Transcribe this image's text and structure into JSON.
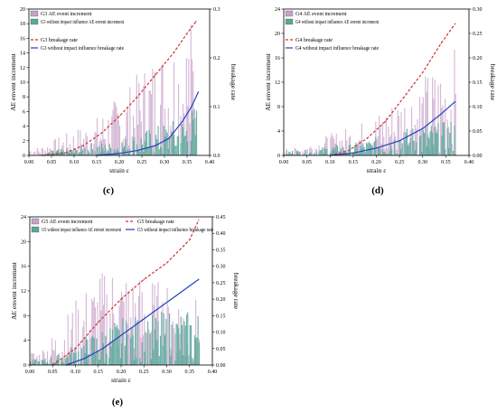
{
  "chart_data": [
    {
      "type": "bar+line",
      "panel_label": "(c)",
      "xlabel": "strain ε",
      "ylabel": "AE envent increment",
      "y2label": "breakage rate",
      "xlim": [
        0.0,
        0.4
      ],
      "xticks": [
        "0.00",
        "0.05",
        "0.10",
        "0.15",
        "0.20",
        "0.25",
        "0.30",
        "0.35",
        "0.40"
      ],
      "ylim": [
        0,
        20
      ],
      "yticks": [
        "0",
        "2",
        "4",
        "6",
        "8",
        "10",
        "12",
        "14",
        "16",
        "18",
        "20"
      ],
      "y2lim": [
        0.0,
        0.3
      ],
      "y2ticks": [
        "0.0",
        "0.1",
        "0.2",
        "0.3"
      ],
      "grid": false,
      "legend_placement": "top-left",
      "legend_entries": [
        "G3 AE event increment",
        "G3 without impact influence AE envent increment",
        "G3 breakage rate",
        "G3 without impact influence breakage rate"
      ],
      "series": [
        {
          "name": "G3 AE event increment",
          "kind": "bar",
          "color": "#c8a0c8",
          "x": [
            0.02,
            0.06,
            0.1,
            0.14,
            0.18,
            0.22,
            0.26,
            0.3,
            0.34,
            0.37
          ],
          "values": [
            1,
            2,
            3,
            4,
            6,
            8,
            11,
            13,
            15,
            17
          ]
        },
        {
          "name": "G3 without impact influence AE envent increment",
          "kind": "bar",
          "color": "#5aa89a",
          "x": [
            0.02,
            0.06,
            0.1,
            0.14,
            0.18,
            0.22,
            0.26,
            0.3,
            0.34,
            0.37
          ],
          "values": [
            0,
            1,
            1,
            2,
            2,
            3,
            4,
            5,
            6,
            8
          ]
        },
        {
          "name": "G3 breakage rate",
          "kind": "line",
          "axis": "right",
          "color": "#d03030",
          "dash": true,
          "x": [
            0.03,
            0.08,
            0.12,
            0.16,
            0.2,
            0.24,
            0.28,
            0.32,
            0.35,
            0.37
          ],
          "values": [
            0.0,
            0.005,
            0.02,
            0.045,
            0.08,
            0.12,
            0.165,
            0.21,
            0.25,
            0.275
          ]
        },
        {
          "name": "G3 without impact influence breakage rate",
          "kind": "line",
          "axis": "right",
          "color": "#2040c0",
          "dash": false,
          "x": [
            0.15,
            0.2,
            0.24,
            0.28,
            0.31,
            0.34,
            0.36,
            0.375
          ],
          "values": [
            0.0,
            0.004,
            0.01,
            0.02,
            0.035,
            0.07,
            0.1,
            0.13
          ]
        }
      ]
    },
    {
      "type": "bar+line",
      "panel_label": "(d)",
      "xlabel": "strain ε",
      "ylabel": "AE envent increment",
      "y2label": "breakage rate",
      "xlim": [
        0.0,
        0.4
      ],
      "xticks": [
        "0.00",
        "0.05",
        "0.10",
        "0.15",
        "0.20",
        "0.25",
        "0.30",
        "0.35",
        "0.40"
      ],
      "ylim": [
        0,
        24
      ],
      "yticks": [
        "0",
        "4",
        "8",
        "12",
        "16",
        "20",
        "24"
      ],
      "y2lim": [
        0.0,
        0.3
      ],
      "y2ticks": [
        "0.00",
        "0.05",
        "0.10",
        "0.15",
        "0.20",
        "0.25",
        "0.30"
      ],
      "grid": false,
      "legend_placement": "top-left",
      "legend_entries": [
        "G4 AE event increment",
        "G4 without impact influence AE envent increment",
        "G4 breakage rate",
        "G4 without impact influence breakage rate"
      ],
      "series": [
        {
          "name": "G4 AE event increment",
          "kind": "bar",
          "color": "#c8a0c8",
          "x": [
            0.02,
            0.06,
            0.1,
            0.14,
            0.18,
            0.22,
            0.26,
            0.3,
            0.34,
            0.37
          ],
          "values": [
            1,
            2,
            3,
            4,
            5,
            7,
            9,
            11,
            13,
            15
          ]
        },
        {
          "name": "G4 without impact influence AE envent increment",
          "kind": "bar",
          "color": "#5aa89a",
          "x": [
            0.02,
            0.06,
            0.1,
            0.14,
            0.18,
            0.22,
            0.26,
            0.3,
            0.34,
            0.37
          ],
          "values": [
            1,
            1,
            2,
            2,
            3,
            4,
            5,
            6,
            6,
            7
          ]
        },
        {
          "name": "G4 breakage rate",
          "kind": "line",
          "axis": "right",
          "color": "#d03030",
          "dash": true,
          "x": [
            0.1,
            0.14,
            0.18,
            0.22,
            0.26,
            0.3,
            0.34,
            0.37
          ],
          "values": [
            0.0,
            0.01,
            0.035,
            0.07,
            0.12,
            0.17,
            0.23,
            0.27
          ]
        },
        {
          "name": "G4 without impact influence breakage rate",
          "kind": "line",
          "axis": "right",
          "color": "#2040c0",
          "dash": false,
          "x": [
            0.1,
            0.15,
            0.2,
            0.25,
            0.3,
            0.34,
            0.37
          ],
          "values": [
            0.0,
            0.005,
            0.015,
            0.03,
            0.055,
            0.085,
            0.11
          ]
        }
      ]
    },
    {
      "type": "bar+line",
      "panel_label": "(e)",
      "xlabel": "strain ε",
      "ylabel": "AE envent increment",
      "y2label": "breakage rate",
      "xlim": [
        0.0,
        0.4
      ],
      "xticks": [
        "0.00",
        "0.05",
        "0.10",
        "0.15",
        "0.20",
        "0.25",
        "0.30",
        "0.35",
        "0.40"
      ],
      "ylim": [
        0,
        24
      ],
      "yticks": [
        "0",
        "4",
        "8",
        "12",
        "16",
        "20",
        "24"
      ],
      "y2lim": [
        0.0,
        0.45
      ],
      "y2ticks": [
        "0.00",
        "0.05",
        "0.10",
        "0.15",
        "0.20",
        "0.25",
        "0.30",
        "0.35",
        "0.40",
        "0.45"
      ],
      "grid": false,
      "legend_placement": "top",
      "legend_entries": [
        "G5 AE event increment",
        "G5 without impact influence AE envent increment",
        "G5 breakage rate",
        "G5 without impact influence breakage rate"
      ],
      "series": [
        {
          "name": "G5 AE event increment",
          "kind": "bar",
          "color": "#c8a0c8",
          "x": [
            0.02,
            0.06,
            0.1,
            0.14,
            0.18,
            0.22,
            0.26,
            0.3,
            0.34,
            0.37
          ],
          "values": [
            2,
            5,
            9,
            12,
            14,
            13,
            12,
            11,
            10,
            9
          ]
        },
        {
          "name": "G5 without impact influence AE envent increment",
          "kind": "bar",
          "color": "#5aa89a",
          "x": [
            0.02,
            0.06,
            0.1,
            0.14,
            0.18,
            0.22,
            0.26,
            0.3,
            0.34,
            0.37
          ],
          "values": [
            1,
            2,
            4,
            6,
            8,
            9,
            9,
            10,
            10,
            10
          ]
        },
        {
          "name": "G5 breakage rate",
          "kind": "line",
          "axis": "right",
          "color": "#d03030",
          "dash": true,
          "x": [
            0.05,
            0.1,
            0.15,
            0.2,
            0.25,
            0.3,
            0.35,
            0.37
          ],
          "values": [
            0.0,
            0.05,
            0.13,
            0.2,
            0.26,
            0.31,
            0.38,
            0.44
          ]
        },
        {
          "name": "G5 without impact influence breakage rate",
          "kind": "line",
          "axis": "right",
          "color": "#2040c0",
          "dash": false,
          "x": [
            0.08,
            0.12,
            0.16,
            0.2,
            0.24,
            0.28,
            0.32,
            0.35,
            0.37
          ],
          "values": [
            0.0,
            0.02,
            0.05,
            0.09,
            0.13,
            0.17,
            0.21,
            0.24,
            0.26
          ]
        }
      ]
    }
  ]
}
